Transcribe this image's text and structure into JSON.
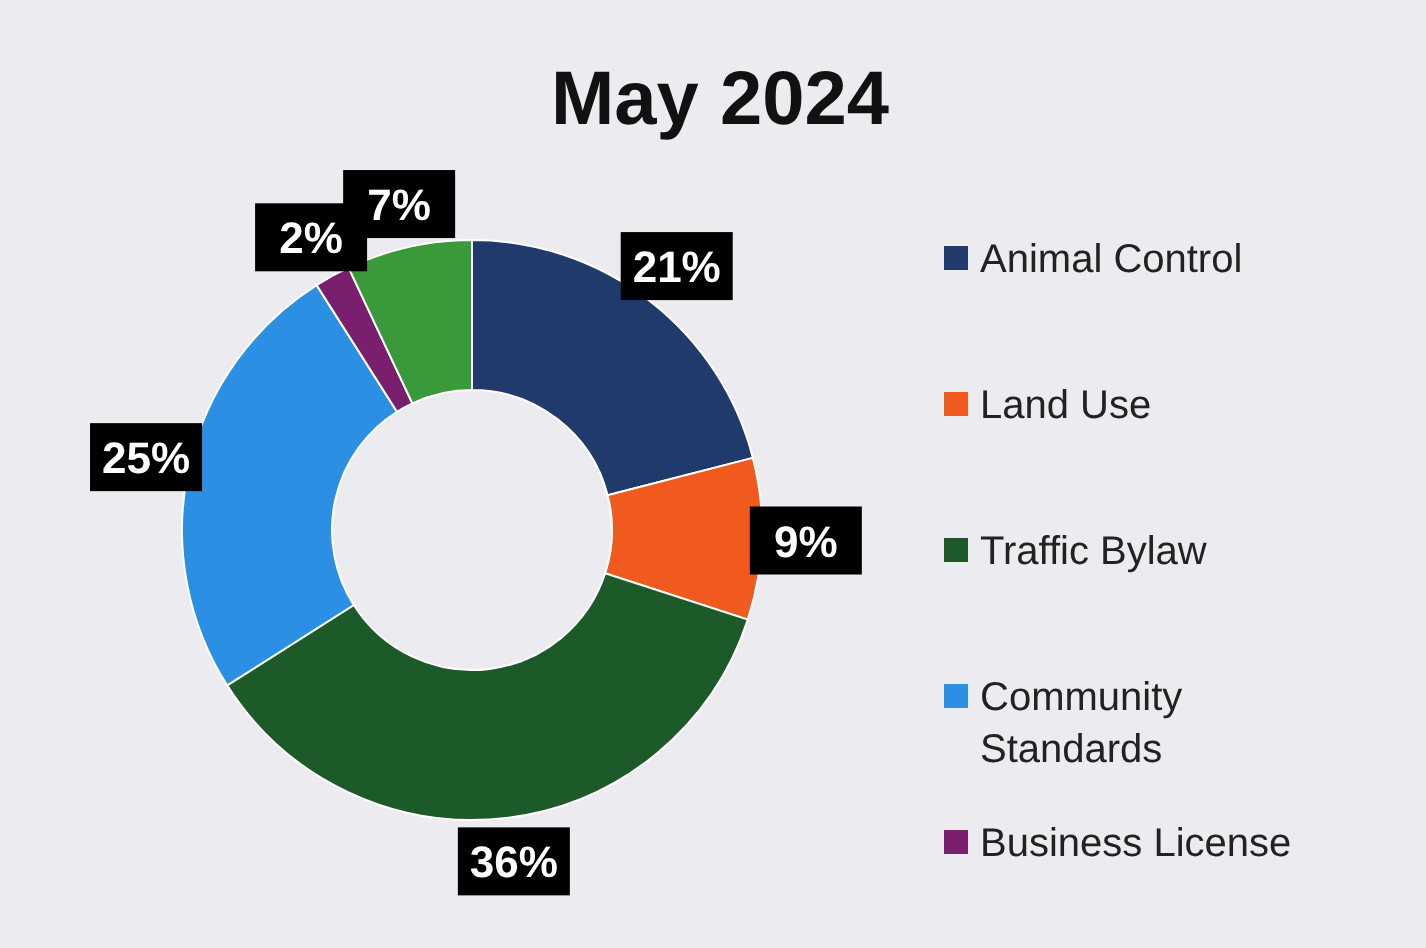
{
  "chart_data": {
    "type": "donut",
    "title": "May 2024",
    "categories": [
      "Animal Control",
      "Land Use",
      "Traffic Bylaw",
      "Community Standards",
      "Business License",
      null
    ],
    "values": [
      21,
      9,
      36,
      25,
      2,
      7
    ],
    "colors": [
      "#1f3a6b",
      "#f05a1e",
      "#1d5a2a",
      "#2b90e3",
      "#7a1f6e",
      "#3a9a3a"
    ],
    "value_labels": [
      "21%",
      "9%",
      "36%",
      "25%",
      "2%",
      "7%"
    ],
    "legend": "right"
  }
}
